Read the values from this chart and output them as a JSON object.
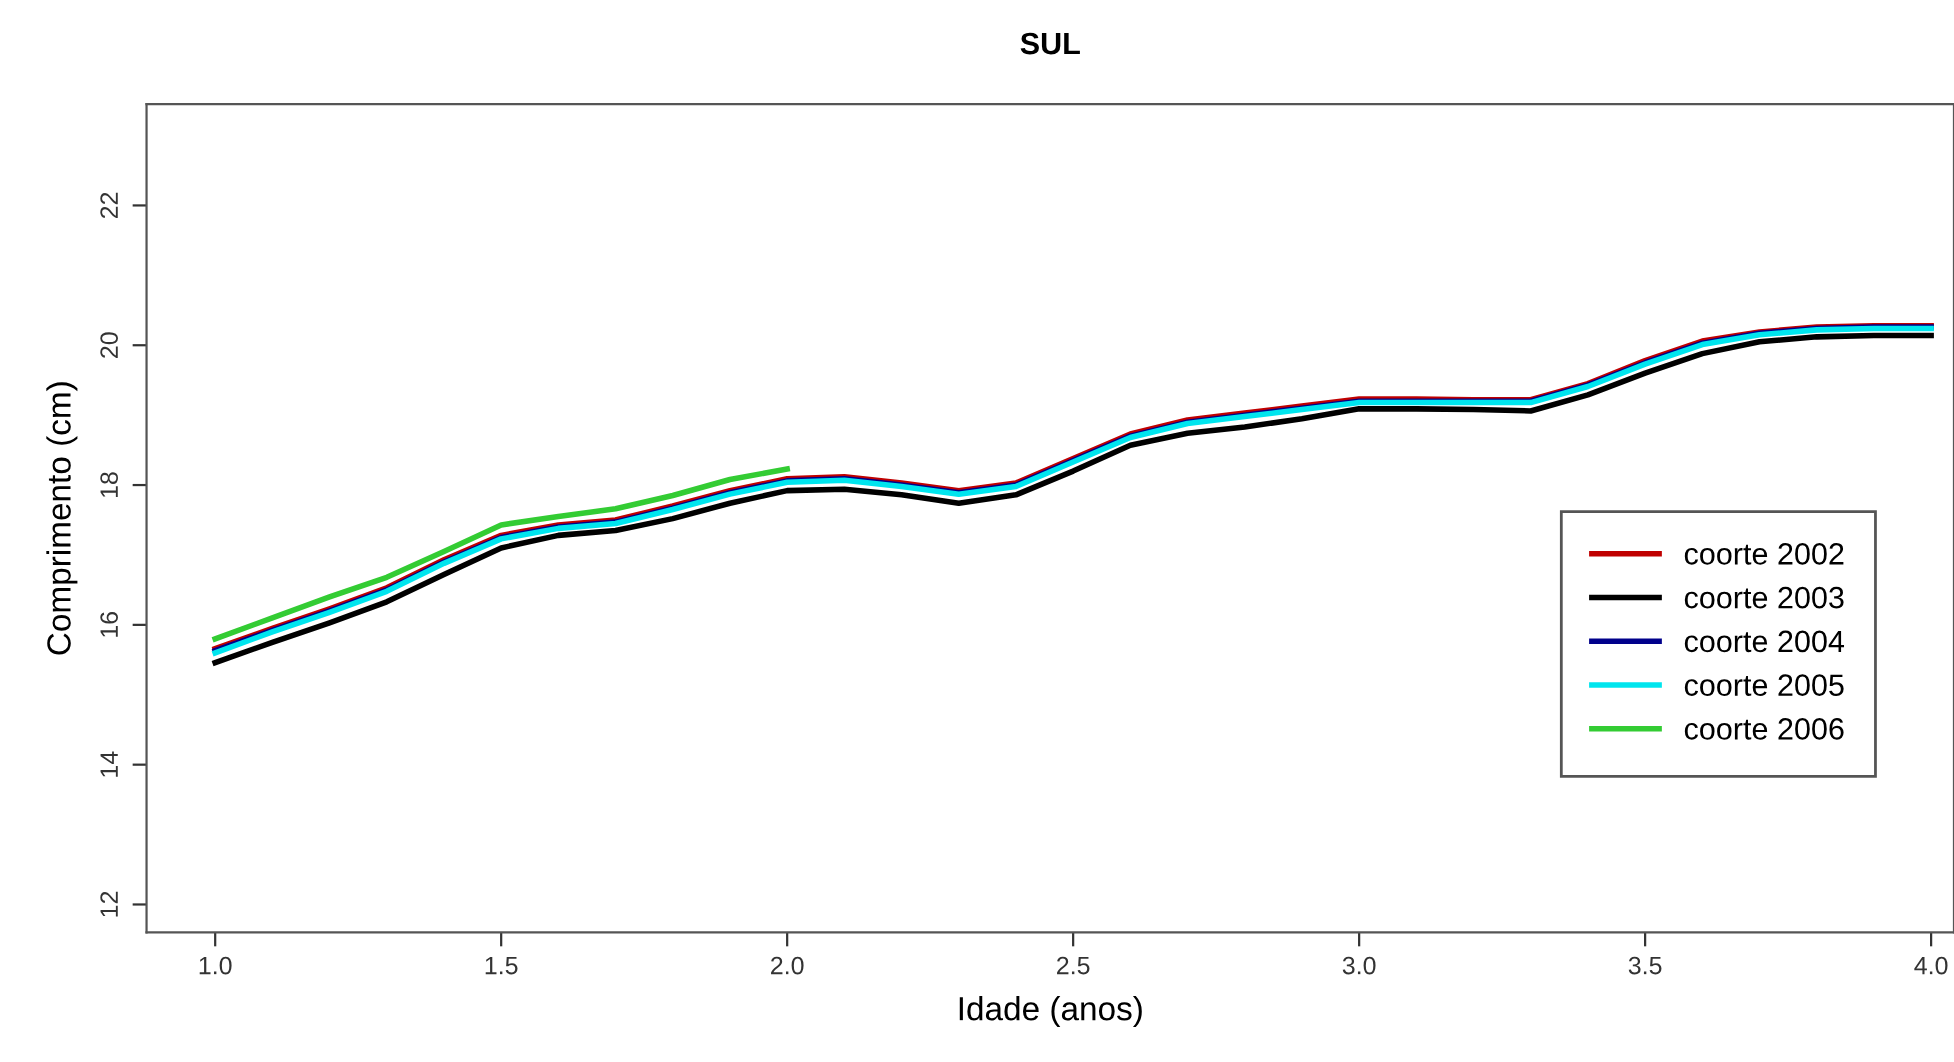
{
  "chart_data": {
    "type": "line",
    "title": "SUL",
    "xlabel": "Idade (anos)",
    "ylabel": "Comprimento (cm)",
    "x": [
      1.0,
      1.1,
      1.2,
      1.3,
      1.4,
      1.5,
      1.6,
      1.7,
      1.8,
      1.9,
      2.0,
      2.1,
      2.2,
      2.3,
      2.4,
      2.5,
      2.6,
      2.7,
      2.8,
      2.9,
      3.0,
      3.1,
      3.2,
      3.3,
      3.4,
      3.5,
      3.6,
      3.7,
      3.8,
      3.9,
      4.0
    ],
    "series": [
      {
        "name": "coorte 2002",
        "color": "#c00000",
        "values": [
          15.66,
          15.95,
          16.23,
          16.53,
          16.93,
          17.28,
          17.43,
          17.5,
          17.7,
          17.92,
          18.09,
          18.12,
          18.03,
          17.92,
          18.03,
          18.38,
          18.73,
          18.93,
          19.03,
          19.13,
          19.23,
          19.23,
          19.22,
          19.22,
          19.45,
          19.78,
          20.06,
          20.19,
          20.26,
          20.28,
          20.28
        ]
      },
      {
        "name": "coorte 2003",
        "color": "#000000",
        "values": [
          15.46,
          15.75,
          16.03,
          16.33,
          16.72,
          17.1,
          17.28,
          17.35,
          17.52,
          17.74,
          17.92,
          17.94,
          17.86,
          17.74,
          17.86,
          18.2,
          18.57,
          18.74,
          18.83,
          18.95,
          19.09,
          19.09,
          19.08,
          19.06,
          19.29,
          19.6,
          19.88,
          20.05,
          20.12,
          20.14,
          20.14
        ]
      },
      {
        "name": "coorte 2004",
        "color": "#00008b",
        "values": [
          15.63,
          15.92,
          16.2,
          16.5,
          16.9,
          17.25,
          17.4,
          17.47,
          17.67,
          17.89,
          18.06,
          18.09,
          18.0,
          17.89,
          18.0,
          18.35,
          18.7,
          18.9,
          19.0,
          19.1,
          19.2,
          19.2,
          19.2,
          19.2,
          19.43,
          19.75,
          20.03,
          20.17,
          20.24,
          20.26,
          20.26
        ]
      },
      {
        "name": "coorte 2005",
        "color": "#00e5ee",
        "values": [
          15.6,
          15.9,
          16.18,
          16.48,
          16.88,
          17.23,
          17.38,
          17.45,
          17.65,
          17.87,
          18.04,
          18.07,
          17.98,
          17.87,
          17.98,
          18.33,
          18.68,
          18.88,
          18.98,
          19.08,
          19.18,
          19.18,
          19.18,
          19.18,
          19.41,
          19.73,
          20.01,
          20.15,
          20.22,
          20.24,
          20.24
        ]
      },
      {
        "name": "coorte 2006",
        "color": "#33cc33",
        "values": [
          15.8,
          16.1,
          16.4,
          16.68,
          17.05,
          17.43,
          17.55,
          17.66,
          17.85,
          18.08,
          18.23,
          null,
          null,
          null,
          null,
          null,
          null,
          null,
          null,
          null,
          null,
          null,
          null,
          null,
          null,
          null,
          null,
          null,
          null,
          null,
          null
        ]
      }
    ],
    "xlim": [
      0.88,
      4.04
    ],
    "xticks": [
      {
        "value": 1.0,
        "label": "1.0"
      },
      {
        "value": 1.5,
        "label": "1.5"
      },
      {
        "value": 2.0,
        "label": "2.0"
      },
      {
        "value": 2.5,
        "label": "2.5"
      },
      {
        "value": 3.0,
        "label": "3.0"
      },
      {
        "value": 3.5,
        "label": "3.5"
      },
      {
        "value": 4.0,
        "label": "4.0"
      }
    ],
    "ylim": [
      11.6,
      23.45
    ],
    "yticks": [
      12,
      14,
      16,
      18,
      20,
      22
    ],
    "legend": "bottom right",
    "line_style": "solid"
  }
}
